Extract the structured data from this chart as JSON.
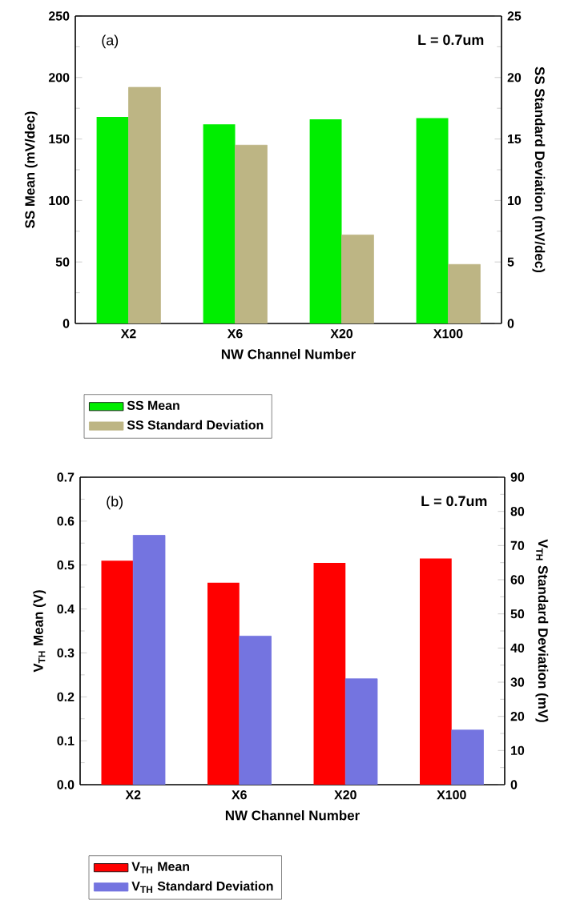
{
  "chart_data": [
    {
      "type": "bar",
      "categories": [
        "X2",
        "X6",
        "X20",
        "X100"
      ],
      "xlabel": "NW Channel Number",
      "ylabel": "SS Mean (mV/dec)",
      "y2label": "SS Standard Deviation (mV/dec)",
      "ylim": [
        0,
        250
      ],
      "yticks": [
        0,
        50,
        100,
        150,
        200,
        250
      ],
      "y2lim": [
        0,
        25
      ],
      "y2ticks": [
        0,
        5,
        10,
        15,
        20,
        25
      ],
      "series": [
        {
          "name": "SS Mean",
          "color": "#00ee00",
          "values": [
            168,
            162,
            166,
            167
          ]
        },
        {
          "name": "SS Standard Deviation",
          "color": "#bdb584",
          "axis": "y2",
          "values": [
            19.2,
            14.5,
            7.2,
            4.8
          ]
        }
      ],
      "annotations": [
        "(a)",
        "L = 0.7um"
      ],
      "legend": "bottom"
    },
    {
      "type": "bar",
      "categories": [
        "X2",
        "X6",
        "X20",
        "X100"
      ],
      "xlabel": "NW Channel Number",
      "ylabel": "V$_{TH}$ Mean (V)",
      "y2label": "V$_{TH}$ Standard Deviation (mV)",
      "ylim": [
        0,
        0.7
      ],
      "yticks": [
        {
          "value": 0,
          "label": "0.0"
        },
        0.1,
        0.2,
        0.3,
        0.4,
        0.5,
        0.6,
        0.7
      ],
      "y2lim": [
        0,
        90
      ],
      "y2ticks": [
        0,
        10,
        20,
        30,
        40,
        50,
        60,
        70,
        80,
        90
      ],
      "series": [
        {
          "name": "V$_{TH}$ Mean",
          "color": "#ff0000",
          "values": [
            0.51,
            0.46,
            0.505,
            0.515
          ]
        },
        {
          "name": "V$_{TH}$ Standard Deviation",
          "color": "#7474e0",
          "axis": "y2",
          "values": [
            73,
            43.5,
            31,
            16
          ]
        }
      ],
      "annotations": [
        "(b)",
        "L = 0.7um"
      ],
      "legend": "bottom"
    }
  ]
}
